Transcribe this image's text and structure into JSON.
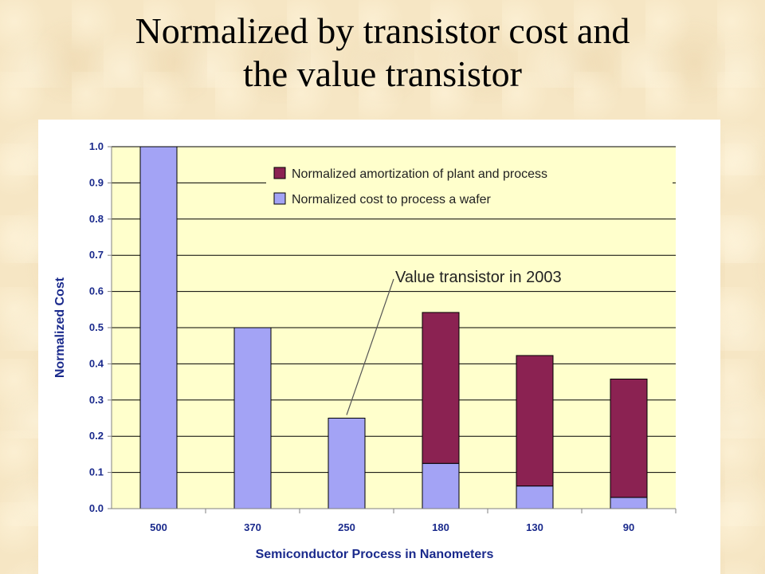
{
  "slide": {
    "title_line1": "Normalized by transistor cost and",
    "title_line2": "the value transistor"
  },
  "colors": {
    "plot_background": "#ffffcc",
    "wafer_bar": "#a3a3f5",
    "amortization_bar": "#8b2252",
    "gridline": "#000000"
  },
  "chart_data": {
    "type": "bar",
    "stacked": true,
    "categories": [
      "500",
      "370",
      "250",
      "180",
      "130",
      "90"
    ],
    "series": [
      {
        "name": "Normalized cost to process a wafer",
        "values": [
          1.0,
          0.5,
          0.25,
          0.125,
          0.0625,
          0.031
        ]
      },
      {
        "name": "Normalized amortization of plant and process",
        "values": [
          0,
          0,
          0,
          0.417,
          0.3605,
          0.327
        ]
      }
    ],
    "xlabel": "Semiconductor Process in Nanometers",
    "ylabel": "Normalized Cost",
    "ylim": [
      0,
      1.0
    ],
    "yticks": [
      "0.0",
      "0.1",
      "0.2",
      "0.3",
      "0.4",
      "0.5",
      "0.6",
      "0.7",
      "0.8",
      "0.9",
      "1.0"
    ],
    "grid": true,
    "legend_position": "top-right",
    "annotation": {
      "text": "Value transistor in 2003",
      "category": "250"
    }
  }
}
